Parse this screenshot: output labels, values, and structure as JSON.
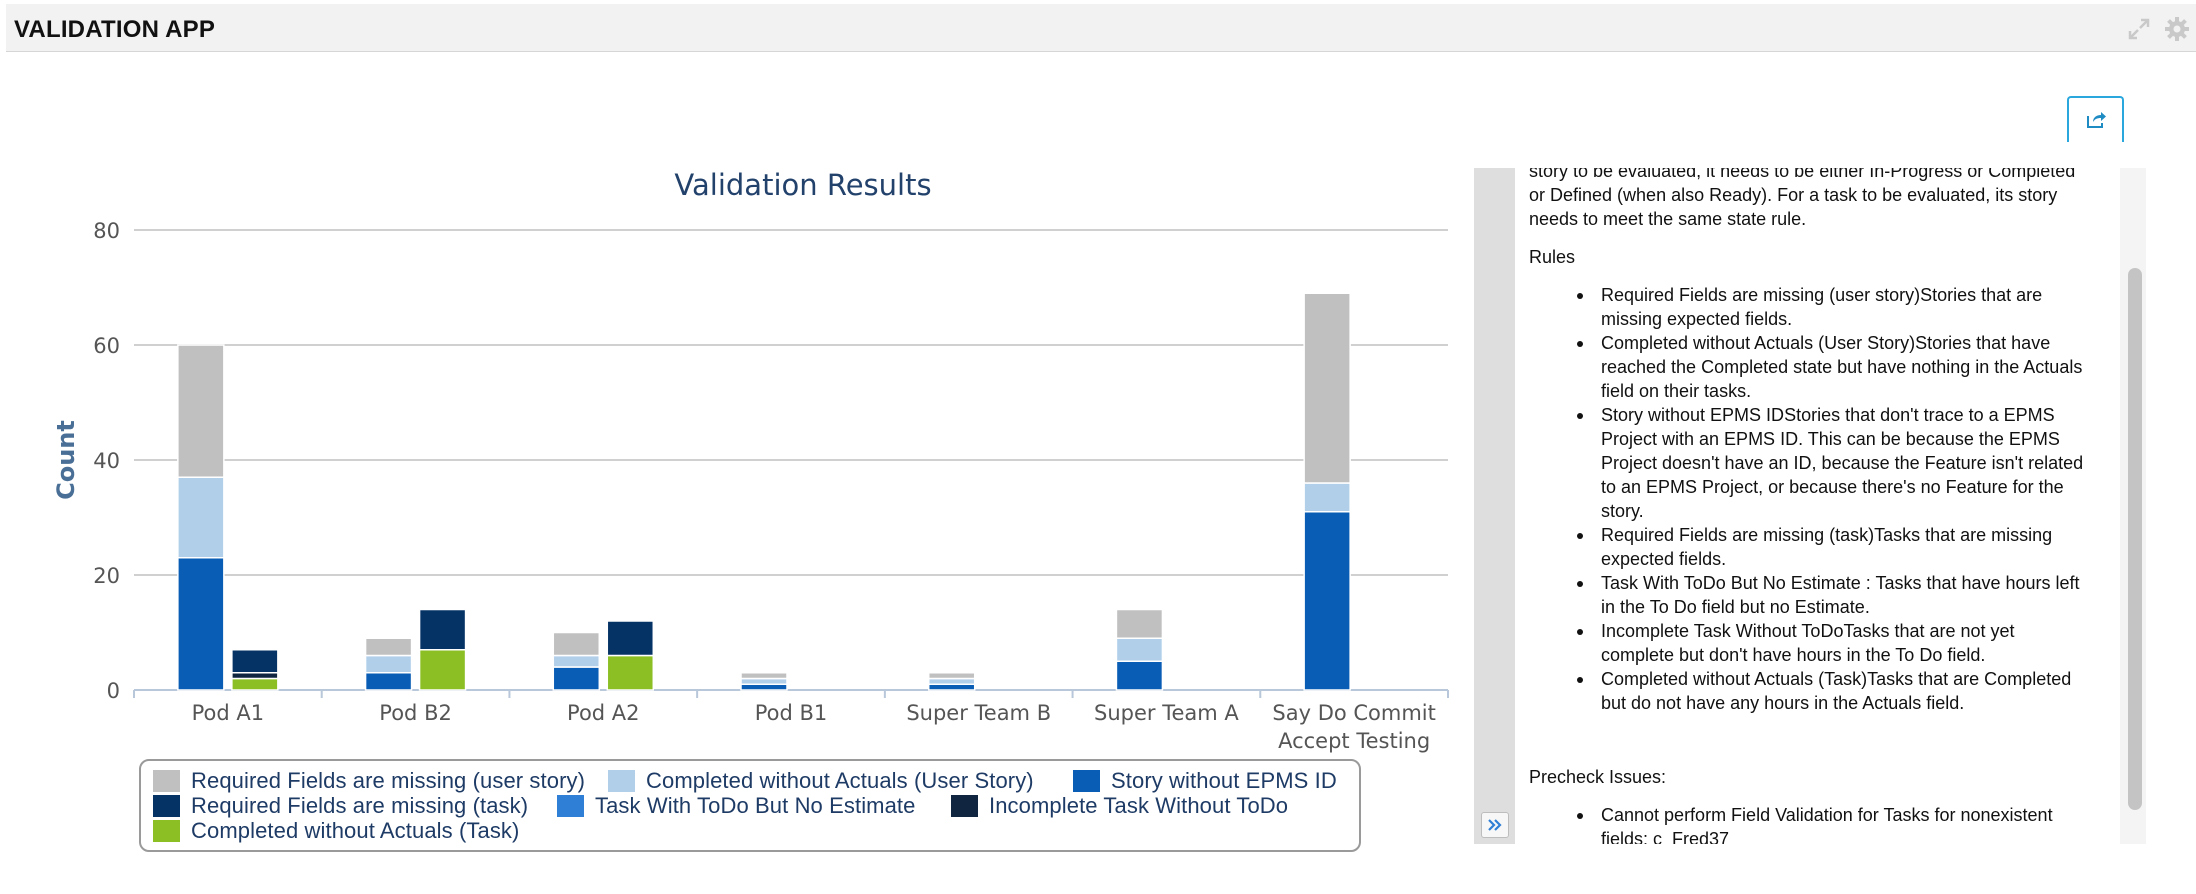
{
  "header": {
    "title": "VALIDATION APP",
    "icons": [
      "expand-icon",
      "gear-icon"
    ]
  },
  "toolbar": {
    "share_icon": "share-icon"
  },
  "chart_data": {
    "type": "bar",
    "title": "Validation Results",
    "xlabel": "",
    "ylabel": "Count",
    "ylim": [
      0,
      80
    ],
    "yticks": [
      0,
      20,
      40,
      60,
      80
    ],
    "grid": true,
    "legend_position": "bottom",
    "categories": [
      "Pod A1",
      "Pod B2",
      "Pod A2",
      "Pod B1",
      "Super Team B",
      "Super Team A",
      "Say Do Commit Accept Testing"
    ],
    "stacks": [
      {
        "stack": "story",
        "series": [
          "Story without EPMS ID",
          "Completed without Actuals (User Story)",
          "Required Fields are missing (user story)"
        ]
      },
      {
        "stack": "task",
        "series": [
          "Completed without Actuals (Task)",
          "Incomplete Task Without ToDo",
          "Task With ToDo But No Estimate",
          "Required Fields are missing (task)"
        ]
      }
    ],
    "series": [
      {
        "name": "Required Fields are missing (user story)",
        "stack": "story",
        "color": "#c0c0c0",
        "values": [
          23,
          3,
          4,
          1,
          1,
          5,
          33
        ]
      },
      {
        "name": "Completed without Actuals (User Story)",
        "stack": "story",
        "color": "#b2cfea",
        "values": [
          14,
          3,
          2,
          1,
          1,
          4,
          5
        ]
      },
      {
        "name": "Story without EPMS ID",
        "stack": "story",
        "color": "#0a5db5",
        "values": [
          23,
          3,
          4,
          1,
          1,
          5,
          31
        ]
      },
      {
        "name": "Required Fields are missing (task)",
        "stack": "task",
        "color": "#063366",
        "values": [
          4,
          7,
          6,
          0,
          0,
          0,
          0
        ]
      },
      {
        "name": "Task With ToDo But No Estimate",
        "stack": "task",
        "color": "#2f7fd6",
        "values": [
          0,
          0,
          0,
          0,
          0,
          0,
          0
        ]
      },
      {
        "name": "Incomplete Task Without ToDo",
        "stack": "task",
        "color": "#0f2540",
        "values": [
          1,
          0,
          0,
          0,
          0,
          0,
          0
        ]
      },
      {
        "name": "Completed without Actuals (Task)",
        "stack": "task",
        "color": "#8bbf24",
        "values": [
          2,
          7,
          6,
          0,
          0,
          0,
          0
        ]
      }
    ]
  },
  "legend": {
    "items": [
      {
        "label": "Required Fields are missing (user story)",
        "color": "#c0c0c0"
      },
      {
        "label": "Completed without Actuals (User Story)",
        "color": "#b2cfea"
      },
      {
        "label": "Story without EPMS ID",
        "color": "#0a5db5"
      },
      {
        "label": "Required Fields are missing (task)",
        "color": "#063366"
      },
      {
        "label": "Task With ToDo But No Estimate",
        "color": "#2f7fd6"
      },
      {
        "label": "Incomplete Task Without ToDo",
        "color": "#0f2540"
      },
      {
        "label": "Completed without Actuals (Task)",
        "color": "#8bbf24"
      }
    ]
  },
  "panel": {
    "intro_lines": [
      "story to be evaluated, it needs to be either In-Progress or Completed",
      "or Defined (when also Ready). For a task to be evaluated, its story",
      "needs to meet the same state rule."
    ],
    "rules_title": "Rules",
    "rules": [
      {
        "name": "Required Fields are missing (user story)",
        "desc": "Stories that are missing expected fields."
      },
      {
        "name": "Completed without Actuals (User Story)",
        "desc": "Stories that have reached the Completed state but have nothing in the Actuals field on their tasks."
      },
      {
        "name": "Story without EPMS ID",
        "desc": "Stories that don't trace to a EPMS Project with an EPMS ID. This can be because the EPMS Project doesn't have an ID, because the Feature isn't related to an EPMS Project, or because there's no Feature for the story."
      },
      {
        "name": "Required Fields are missing (task)",
        "desc": "Tasks that are missing expected fields."
      },
      {
        "name": "Task With ToDo But No Estimate",
        "desc": " : Tasks that have hours left in the To Do field but no Estimate."
      },
      {
        "name": "Incomplete Task Without ToDo",
        "desc": "Tasks that are not yet complete but don't have hours in the To Do field."
      },
      {
        "name": "Completed without Actuals (Task)",
        "desc": "Tasks that are Completed but do not have any hours in the Actuals field."
      }
    ],
    "precheck_title": "Precheck Issues:",
    "precheck": [
      "Cannot perform Field Validation for Tasks for nonexistent fields: c_Fred37"
    ],
    "collapse_icon": "double-chevron-right-icon"
  }
}
